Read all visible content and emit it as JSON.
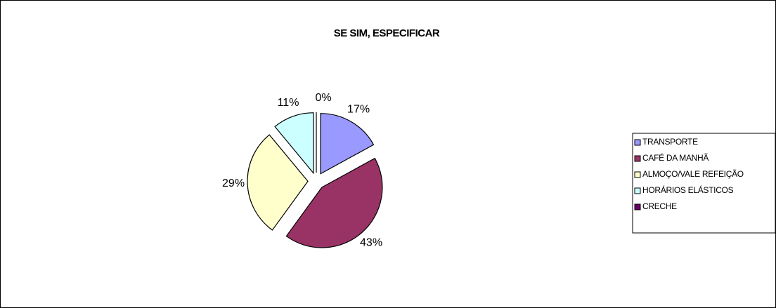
{
  "chart_data": {
    "type": "pie",
    "title": "SE SIM, ESPECIFICAR",
    "categories": [
      "TRANSPORTE",
      "CAFÉ DA MANHÃ",
      "ALMOÇO/VALE REFEIÇÃO",
      "HORÁRIOS ELÁSTICOS",
      "CRECHE"
    ],
    "values": [
      17,
      43,
      29,
      11,
      0
    ],
    "value_labels": [
      "17%",
      "43%",
      "29%",
      "11%",
      "0%"
    ],
    "colors": [
      "#9999ff",
      "#993366",
      "#ffffcc",
      "#ccffff",
      "#660066"
    ],
    "legend": "right"
  }
}
